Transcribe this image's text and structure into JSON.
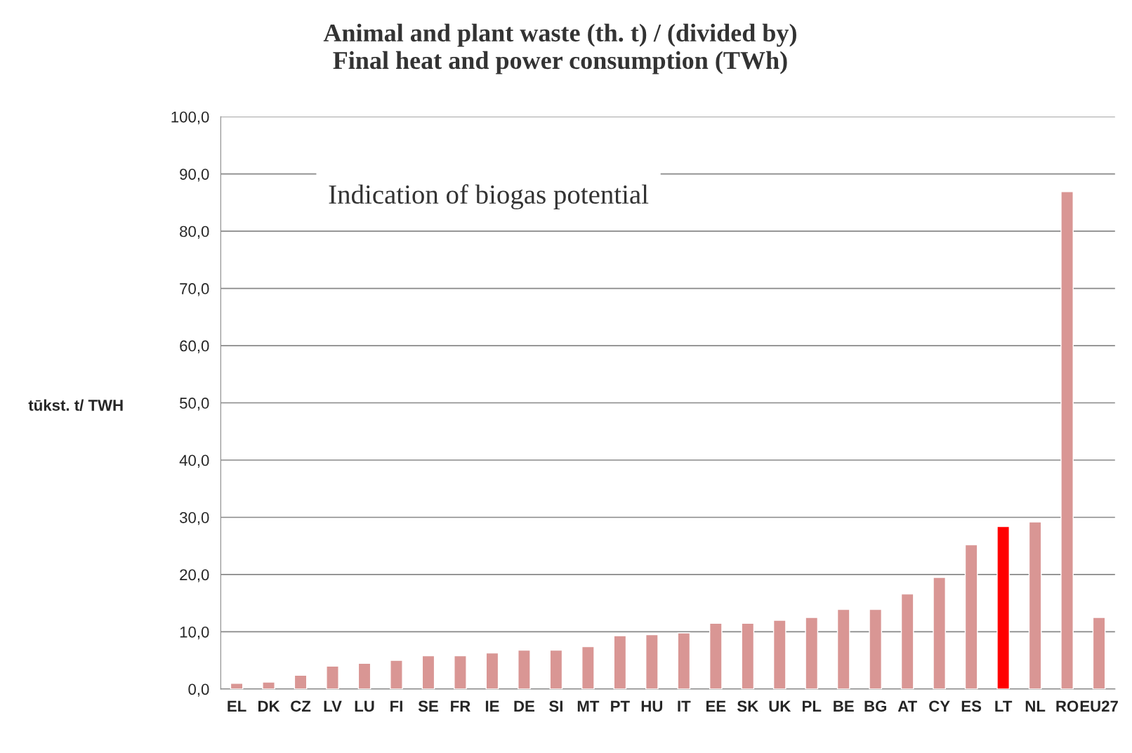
{
  "chart_data": {
    "type": "bar",
    "title": "Animal and plant waste (th. t) / (divided by)\nFinal heat and power consumption (TWh)",
    "ylabel": "tūkst. t/ TWH",
    "annotations": [
      "Indication of biogas potential"
    ],
    "categories": [
      "EL",
      "DK",
      "CZ",
      "LV",
      "LU",
      "FI",
      "SE",
      "FR",
      "IE",
      "DE",
      "SI",
      "MT",
      "PT",
      "HU",
      "IT",
      "EE",
      "SK",
      "UK",
      "PL",
      "BE",
      "BG",
      "AT",
      "CY",
      "ES",
      "LT",
      "NL",
      "RO",
      "EU27"
    ],
    "values": [
      1.0,
      1.2,
      2.4,
      4.0,
      4.5,
      5.0,
      5.8,
      5.8,
      6.3,
      6.8,
      6.8,
      7.4,
      9.3,
      9.5,
      9.8,
      11.5,
      11.5,
      12.0,
      12.5,
      13.9,
      13.9,
      16.6,
      19.5,
      25.2,
      28.4,
      29.2,
      86.9,
      12.5
    ],
    "colors": [
      "#d99694",
      "#d99694",
      "#d99694",
      "#d99694",
      "#d99694",
      "#d99694",
      "#d99694",
      "#d99694",
      "#d99694",
      "#d99694",
      "#d99694",
      "#d99694",
      "#d99694",
      "#d99694",
      "#d99694",
      "#d99694",
      "#d99694",
      "#d99694",
      "#d99694",
      "#d99694",
      "#d99694",
      "#d99694",
      "#d99694",
      "#d99694",
      "#ff0000",
      "#d99694",
      "#d99694",
      "#d99694"
    ],
    "ylim": [
      0,
      100
    ],
    "yticks": [
      {
        "value": 0,
        "label": "0,0"
      },
      {
        "value": 10,
        "label": "10,0"
      },
      {
        "value": 20,
        "label": "20,0"
      },
      {
        "value": 30,
        "label": "30,0"
      },
      {
        "value": 40,
        "label": "40,0"
      },
      {
        "value": 50,
        "label": "50,0"
      },
      {
        "value": 60,
        "label": "60,0"
      },
      {
        "value": 70,
        "label": "70,0"
      },
      {
        "value": 80,
        "label": "80,0"
      },
      {
        "value": 90,
        "label": "90,0"
      },
      {
        "value": 100,
        "label": "100,0"
      }
    ],
    "grid": "y",
    "legend": false
  }
}
